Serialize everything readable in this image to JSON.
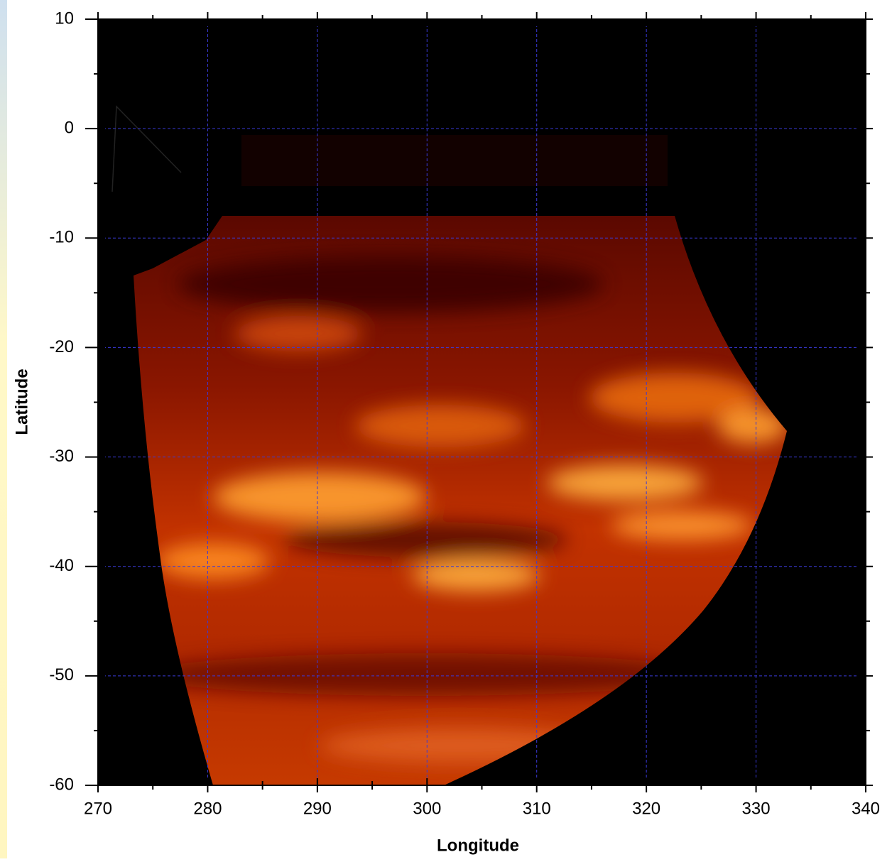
{
  "chart_data": {
    "type": "image-map",
    "x_label": "Longitude",
    "y_label": "Latitude",
    "xlim": [
      270,
      340
    ],
    "ylim": [
      -60,
      10
    ],
    "xticks": [
      270,
      280,
      290,
      300,
      310,
      320,
      330,
      340
    ],
    "yticks": [
      -60,
      -50,
      -40,
      -30,
      -20,
      -10,
      0,
      10
    ],
    "grid": true,
    "grid_color": "#3a3ad8"
  }
}
